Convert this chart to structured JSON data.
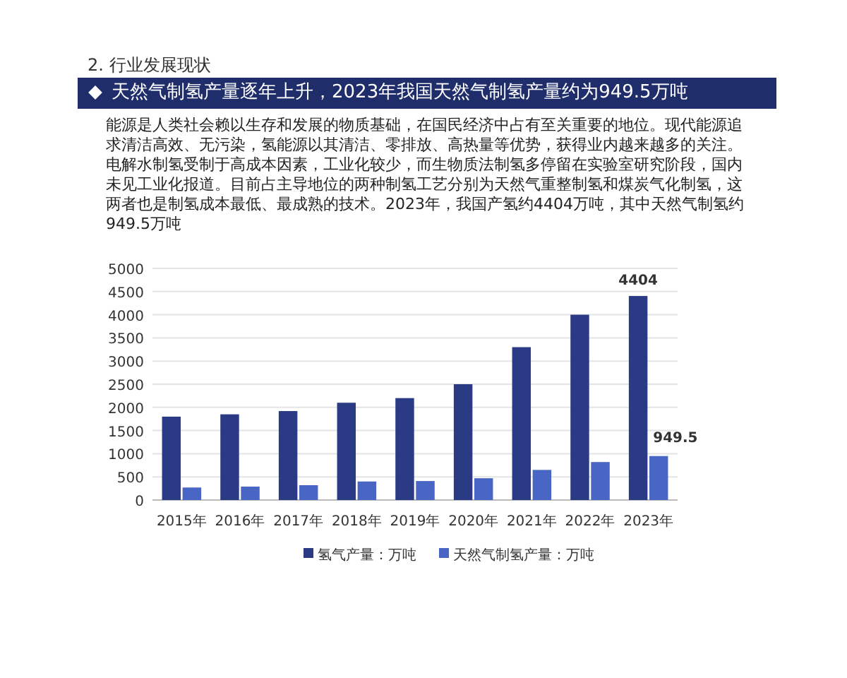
{
  "chart_data": {
    "type": "bar",
    "subtitle": "2. 行业发展现状",
    "title": "天然气制氢产量逐年上升，2023年我国天然气制氢产量约为949.5万吨",
    "annotations": [
      "能源是人类社会赖以生存和发展的物质基础，在国民经济中占有至关重要的地位。现代能源追求清洁高效、无污染，氢能源以其清洁、零排放、高热量等优势，获得业内越来越多的关注。",
      "电解水制氢受制于高成本因素，工业化较少，而生物质法制氢多停留在实验室研究阶段，国内未见工业化报道。目前占主导地位的两种制氢工艺分别为天然气重整制氢和煤炭气化制氢，这两者也是制氢成本最低、最成熟的技术。2023年，我国产氢约4404万吨，其中天然气制氢约949.5万吨"
    ],
    "categories": [
      "2015年",
      "2016年",
      "2017年",
      "2018年",
      "2019年",
      "2020年",
      "2021年",
      "2022年",
      "2023年"
    ],
    "series": [
      {
        "name": "氢气产量：万吨",
        "color": "#2b3a85",
        "values": [
          1800,
          1850,
          1920,
          2100,
          2200,
          2500,
          3300,
          4000,
          4404
        ],
        "value_labels": [
          null,
          null,
          null,
          null,
          null,
          null,
          null,
          null,
          "4404"
        ]
      },
      {
        "name": "天然气制氢产量：万吨",
        "color": "#4a66c4",
        "values": [
          270,
          290,
          320,
          400,
          410,
          470,
          650,
          820,
          949.5
        ],
        "value_labels": [
          null,
          null,
          null,
          null,
          null,
          null,
          null,
          null,
          "949.5"
        ]
      }
    ],
    "ylim": [
      0,
      5000
    ],
    "yticks": [
      0,
      500,
      1000,
      1500,
      2000,
      2500,
      3000,
      3500,
      4000,
      4500,
      5000
    ],
    "grid": "y",
    "legend": "bottom"
  }
}
